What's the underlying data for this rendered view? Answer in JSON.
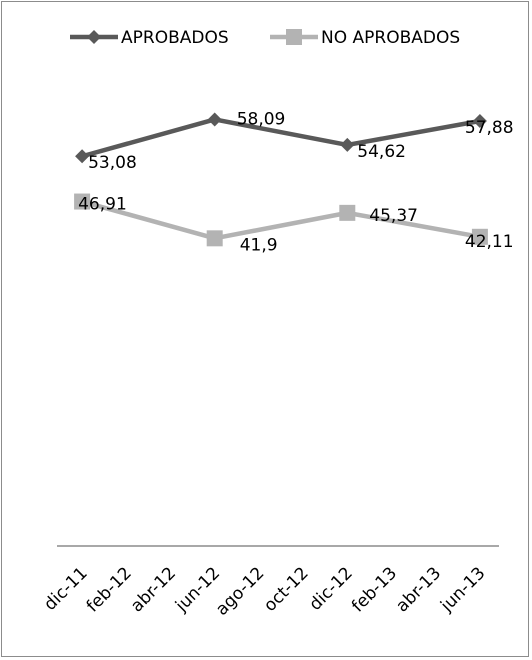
{
  "chart_data": {
    "type": "line",
    "title": "",
    "xlabel": "",
    "ylabel": "",
    "ylim": [
      0,
      70
    ],
    "grid": false,
    "legend_position": "top",
    "categories": [
      "dic-11",
      "feb-12",
      "abr-12",
      "jun-12",
      "ago-12",
      "oct-12",
      "dic-12",
      "feb-13",
      "abr-13",
      "jun-13"
    ],
    "series": [
      {
        "name": "APROBADOS",
        "color": "#595959",
        "marker": "diamond",
        "points": [
          {
            "x": "dic-11",
            "y": 53.08,
            "label": "53,08"
          },
          {
            "x": "jun-12",
            "y": 58.09,
            "label": "58,09"
          },
          {
            "x": "dic-12",
            "y": 54.62,
            "label": "54,62"
          },
          {
            "x": "jun-13",
            "y": 57.88,
            "label": "57,88"
          }
        ]
      },
      {
        "name": "NO APROBADOS",
        "color": "#b3b3b3",
        "marker": "square",
        "points": [
          {
            "x": "dic-11",
            "y": 46.91,
            "label": "46,91"
          },
          {
            "x": "jun-12",
            "y": 41.9,
            "label": "41,9"
          },
          {
            "x": "dic-12",
            "y": 45.37,
            "label": "45,37"
          },
          {
            "x": "jun-13",
            "y": 42.11,
            "label": "42,11"
          }
        ]
      }
    ]
  }
}
